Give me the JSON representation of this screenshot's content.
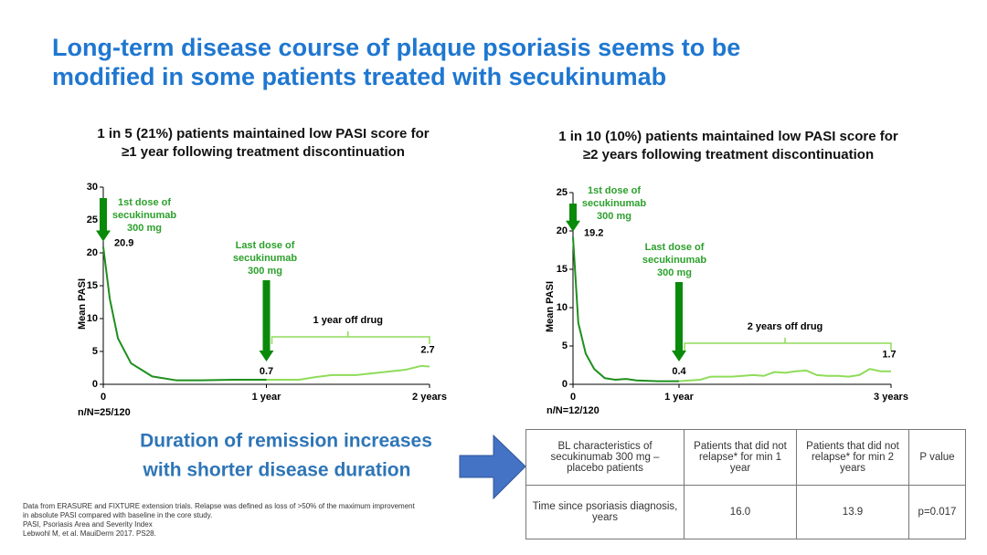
{
  "title": [
    "Long-term disease course of plaque psoriasis seems to be",
    "modified in some patients treated with secukinumab"
  ],
  "chart_data": [
    {
      "type": "line",
      "title": [
        "1 in 5 (21%) patients maintained low PASI score for",
        "≥1 year following treatment discontinuation"
      ],
      "y_label": "Mean PASI",
      "xlim": [
        0,
        2
      ],
      "xticks": [
        0,
        {
          "value": 1,
          "label": "1 year"
        },
        {
          "value": 2,
          "label": "2 years"
        }
      ],
      "ylim": [
        0,
        30
      ],
      "yticks": [
        0,
        5,
        10,
        15,
        20,
        25,
        30
      ],
      "series": [
        {
          "color": "#1e8f1e",
          "x": [
            0,
            0.04,
            0.09,
            0.17,
            0.3,
            0.45,
            0.6,
            0.8,
            1.0
          ],
          "values": [
            20.9,
            13,
            7,
            3.2,
            1.2,
            0.6,
            0.6,
            0.7,
            0.7
          ]
        },
        {
          "color": "#8fdc5a",
          "x": [
            1.0,
            1.2,
            1.3,
            1.4,
            1.55,
            1.7,
            1.85,
            1.95,
            2.0
          ],
          "values": [
            0.7,
            0.7,
            1.1,
            1.4,
            1.4,
            1.8,
            2.2,
            2.8,
            2.7
          ]
        }
      ],
      "annotations": {
        "first_dose": [
          "1st dose of",
          "secukinumab",
          "300 mg"
        ],
        "last_dose": [
          "Last dose of",
          "secukinumab",
          "300 mg"
        ],
        "off_drug": "1 year off drug",
        "n": "n/N=25/120"
      }
    },
    {
      "type": "line",
      "title": [
        "1 in 10 (10%) patients maintained low PASI score for",
        "≥2 years following treatment discontinuation"
      ],
      "y_label": "Mean PASI",
      "xlim": [
        0,
        3
      ],
      "xticks": [
        0,
        {
          "value": 1,
          "label": "1 year"
        },
        {
          "value": 3,
          "label": "3 years"
        }
      ],
      "ylim": [
        0,
        25
      ],
      "yticks": [
        0,
        5,
        10,
        15,
        20,
        25
      ],
      "series": [
        {
          "color": "#1e8f1e",
          "x": [
            0,
            0.05,
            0.12,
            0.2,
            0.3,
            0.4,
            0.5,
            0.6,
            0.8,
            1.0
          ],
          "values": [
            19.2,
            8,
            4,
            2,
            0.8,
            0.6,
            0.7,
            0.5,
            0.4,
            0.4
          ]
        },
        {
          "color": "#8fdc5a",
          "x": [
            1.0,
            1.1,
            1.2,
            1.3,
            1.5,
            1.7,
            1.8,
            1.9,
            2.0,
            2.1,
            2.2,
            2.3,
            2.4,
            2.5,
            2.6,
            2.7,
            2.8,
            2.9,
            3.0
          ],
          "values": [
            0.4,
            0.5,
            0.6,
            1.0,
            1.0,
            1.2,
            1.1,
            1.6,
            1.5,
            1.7,
            1.8,
            1.2,
            1.1,
            1.1,
            1.0,
            1.2,
            2.0,
            1.7,
            1.7
          ]
        }
      ],
      "annotations": {
        "first_dose": [
          "1st dose of",
          "secukinumab",
          "300 mg"
        ],
        "last_dose": [
          "Last dose of",
          "secukinumab",
          "300 mg"
        ],
        "off_drug": "2 years off drug",
        "n": "n/N=12/120"
      }
    }
  ],
  "callout": [
    "Duration of remission increases",
    "with shorter disease duration"
  ],
  "table": {
    "header": [
      "BL characteristics of secukinumab 300 mg – placebo patients",
      "Patients that did not relapse* for min 1 year",
      "Patients that did not relapse* for min 2 years",
      "P value"
    ],
    "rows": [
      [
        "Time since psoriasis diagnosis, years",
        "16.0",
        "13.9",
        "p=0.017"
      ]
    ]
  },
  "footnotes": [
    "Data from ERASURE and FIXTURE extension trials. Relapse was defined as loss of >50% of the maximum improvement",
    "in absolute PASI compared with baseline in the core study.",
    "PASI, Psoriasis Area and Severity Index",
    "Lebwohl M, et al. MauiDerm 2017. PS28."
  ]
}
